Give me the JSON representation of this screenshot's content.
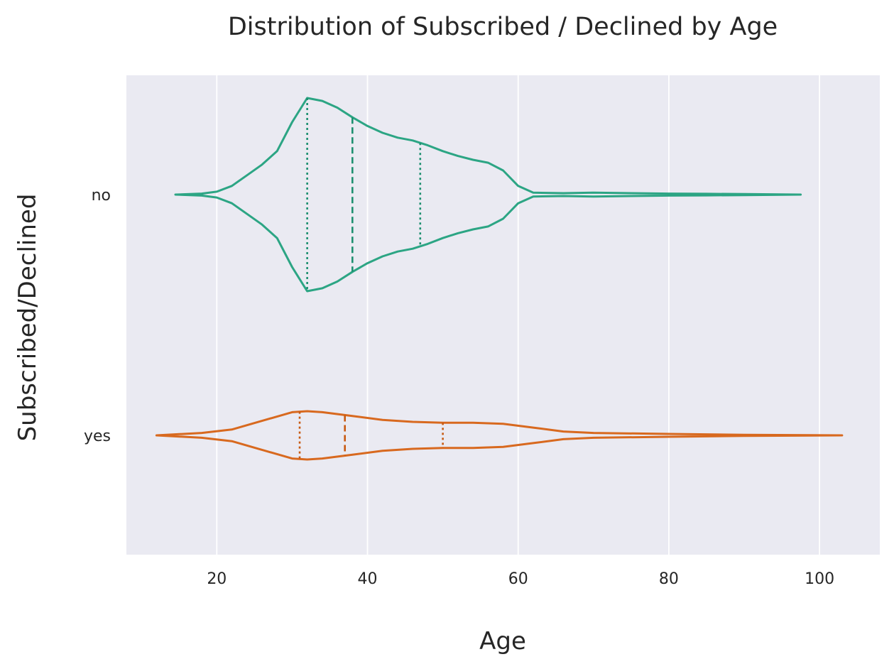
{
  "chart_data": {
    "type": "violin",
    "orientation": "horizontal",
    "title": "Distribution of Subscribed / Declined by Age",
    "xlabel": "Age",
    "ylabel": "Subscribed/Declined",
    "xlim": [
      8,
      108
    ],
    "xticks": [
      "20",
      "40",
      "60",
      "80",
      "100"
    ],
    "xtick_values": [
      20,
      40,
      60,
      80,
      100
    ],
    "grid": true,
    "background": "#eaeaf2",
    "categories": [
      "no",
      "yes"
    ],
    "series": [
      {
        "category": "no",
        "color": "#2ca584",
        "quartile_color": "#1e9070",
        "range": [
          14.5,
          97.5
        ],
        "quartiles": {
          "q1": 32,
          "median": 38,
          "q3": 47
        },
        "density": [
          [
            14.5,
            0.0
          ],
          [
            18,
            0.01
          ],
          [
            20,
            0.03
          ],
          [
            22,
            0.09
          ],
          [
            24,
            0.2
          ],
          [
            26,
            0.31
          ],
          [
            28,
            0.45
          ],
          [
            30,
            0.75
          ],
          [
            32,
            1.0
          ],
          [
            34,
            0.97
          ],
          [
            36,
            0.9
          ],
          [
            38,
            0.8
          ],
          [
            40,
            0.71
          ],
          [
            42,
            0.64
          ],
          [
            44,
            0.59
          ],
          [
            46,
            0.56
          ],
          [
            48,
            0.51
          ],
          [
            50,
            0.45
          ],
          [
            52,
            0.4
          ],
          [
            54,
            0.36
          ],
          [
            56,
            0.33
          ],
          [
            58,
            0.25
          ],
          [
            60,
            0.09
          ],
          [
            62,
            0.02
          ],
          [
            66,
            0.015
          ],
          [
            70,
            0.02
          ],
          [
            75,
            0.015
          ],
          [
            80,
            0.01
          ],
          [
            85,
            0.008
          ],
          [
            90,
            0.005
          ],
          [
            97.5,
            0.0
          ]
        ]
      },
      {
        "category": "yes",
        "color": "#d8691f",
        "quartile_color": "#c85a12",
        "range": [
          12,
          103
        ],
        "quartiles": {
          "q1": 31,
          "median": 37,
          "q3": 50
        },
        "density": [
          [
            12,
            0.0
          ],
          [
            18,
            0.025
          ],
          [
            22,
            0.06
          ],
          [
            26,
            0.15
          ],
          [
            30,
            0.24
          ],
          [
            32,
            0.25
          ],
          [
            34,
            0.24
          ],
          [
            38,
            0.2
          ],
          [
            42,
            0.16
          ],
          [
            46,
            0.14
          ],
          [
            50,
            0.13
          ],
          [
            54,
            0.13
          ],
          [
            58,
            0.12
          ],
          [
            62,
            0.08
          ],
          [
            66,
            0.04
          ],
          [
            70,
            0.025
          ],
          [
            80,
            0.015
          ],
          [
            90,
            0.005
          ],
          [
            103,
            0.0
          ]
        ]
      }
    ]
  }
}
